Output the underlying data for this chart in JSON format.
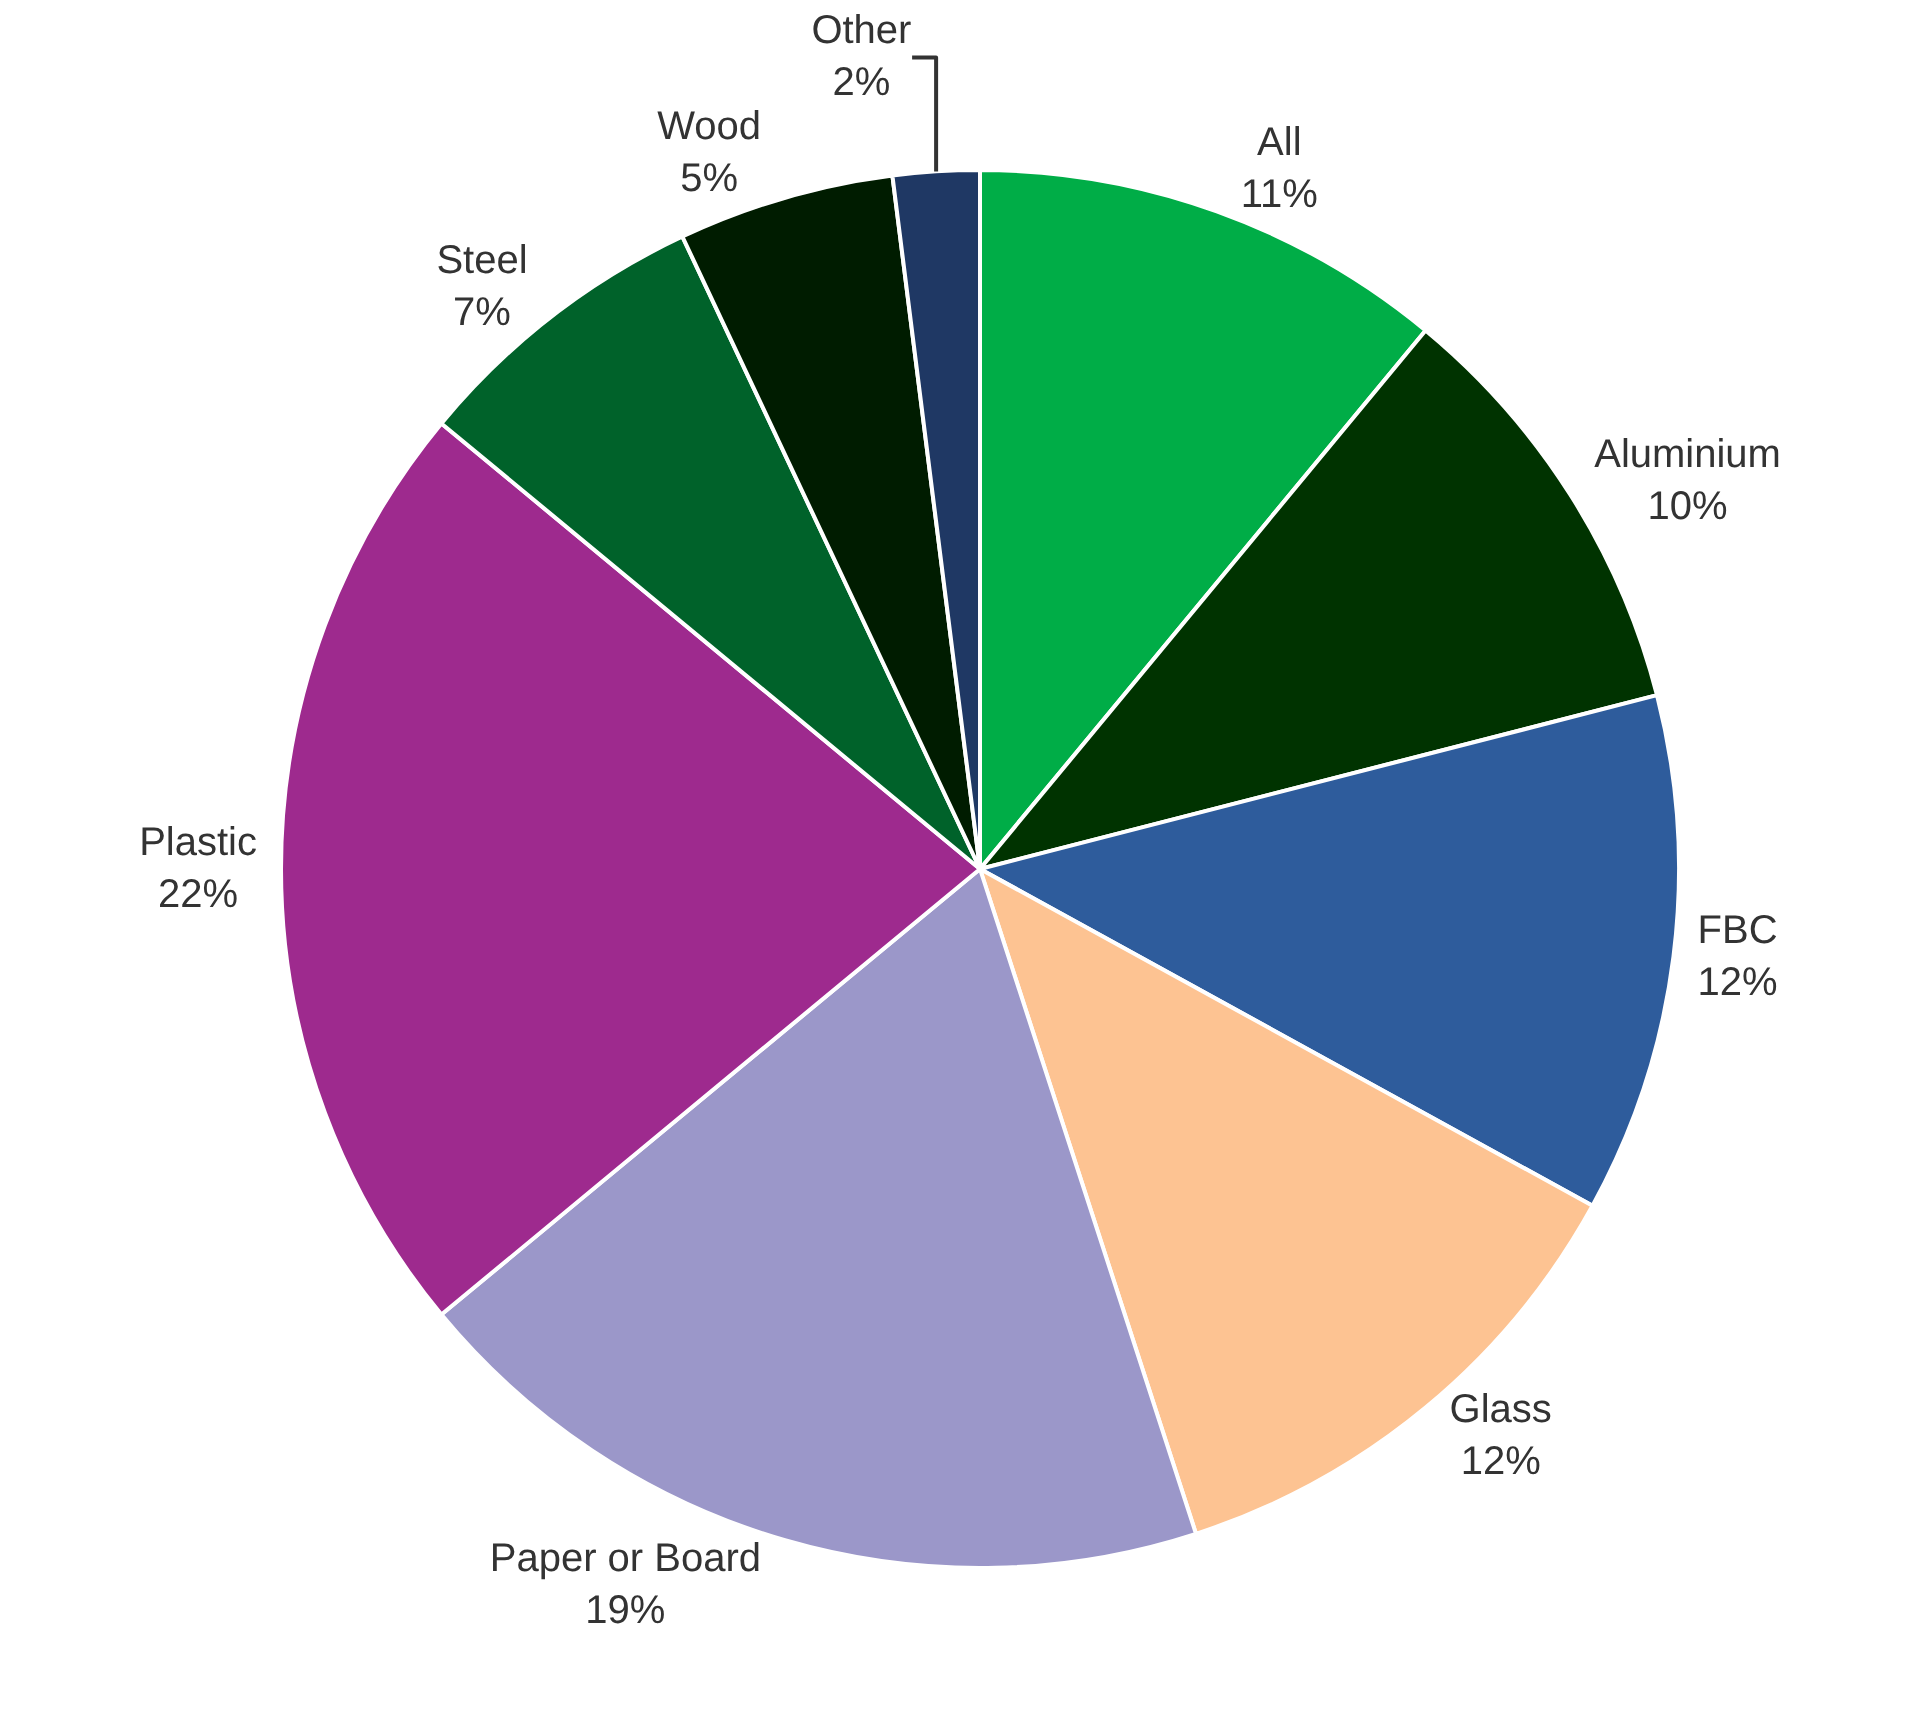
{
  "chart_data": {
    "type": "pie",
    "categories": [
      "All",
      "Aluminium",
      "FBC",
      "Glass",
      "Paper or Board",
      "Plastic",
      "Steel",
      "Wood",
      "Other"
    ],
    "values": [
      11,
      10,
      12,
      12,
      19,
      22,
      7,
      5,
      2
    ],
    "value_labels": [
      "11%",
      "10%",
      "12%",
      "12%",
      "19%",
      "22%",
      "7%",
      "5%",
      "2%"
    ],
    "colors": [
      "#00ad47",
      "#003300",
      "#2e5c9c",
      "#fdc392",
      "#9b97c9",
      "#9e2a8e",
      "#00622a",
      "#001c00",
      "#1f3864"
    ],
    "legend": false
  }
}
